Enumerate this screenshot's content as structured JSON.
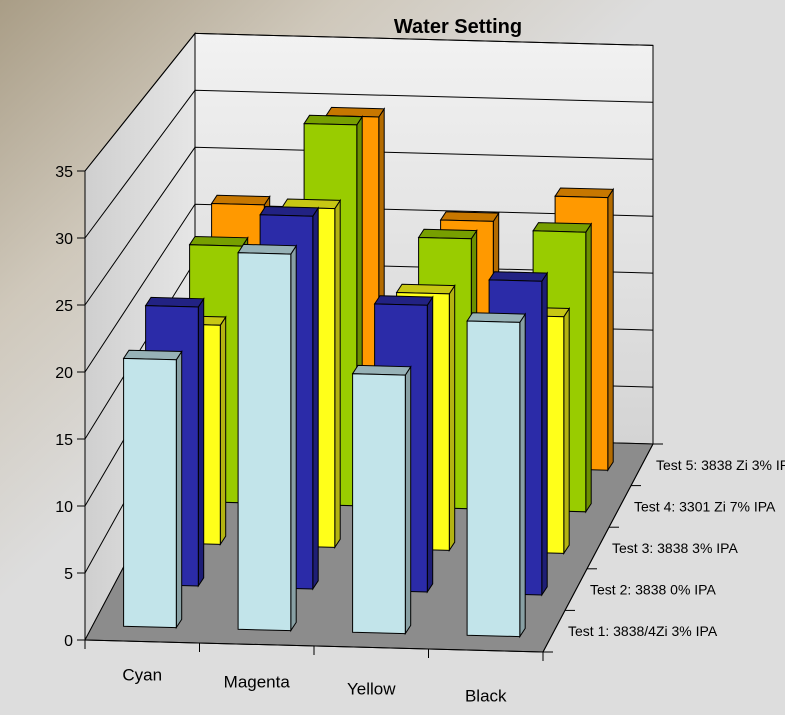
{
  "chart_data": {
    "type": "bar",
    "title": "Water Setting",
    "categories": [
      "Cyan",
      "Magenta",
      "Yellow",
      "Black"
    ],
    "ylim": [
      0,
      35
    ],
    "yticks": [
      0,
      5,
      10,
      15,
      20,
      25,
      30,
      35
    ],
    "grid": true,
    "series": [
      {
        "name": "Test 1: 3838/4Zi 3% IPA",
        "values": [
          20.2,
          28.4,
          19.5,
          23.7
        ],
        "color": "#c2e4ea"
      },
      {
        "name": "Test 2: 3838 0% IPA",
        "values": [
          21.7,
          29.0,
          22.3,
          24.4
        ],
        "color": "#2b2ba8"
      },
      {
        "name": "Test 3: 3838 3% IPA",
        "values": [
          17.6,
          27.2,
          20.6,
          19.0
        ],
        "color": "#ffff1a"
      },
      {
        "name": "Test 4: 3301 Zi 7% IPA",
        "values": [
          21.3,
          31.6,
          22.4,
          23.2
        ],
        "color": "#99cc00"
      },
      {
        "name": "Test 5: 3838 Zi 3% IPA",
        "values": [
          22.0,
          29.8,
          21.1,
          23.4
        ],
        "color": "#ff9900"
      }
    ]
  }
}
